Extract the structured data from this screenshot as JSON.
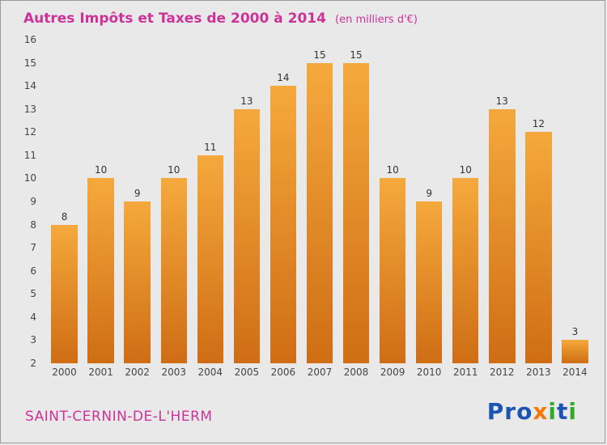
{
  "header": {
    "title": "Autres Impôts et Taxes de 2000 à 2014",
    "subtitle": "(en milliers d'€)"
  },
  "footer": {
    "commune": "SAINT-CERNIN-DE-L'HERM",
    "logo_letters": [
      {
        "ch": "P",
        "color": "#1c54b2"
      },
      {
        "ch": "r",
        "color": "#1c54b2"
      },
      {
        "ch": "o",
        "color": "#1c54b2"
      },
      {
        "ch": "x",
        "color": "#f4790b"
      },
      {
        "ch": "i",
        "color": "#35a829"
      },
      {
        "ch": "t",
        "color": "#1c54b2"
      },
      {
        "ch": "i",
        "color": "#35a829"
      }
    ]
  },
  "colors": {
    "title": "#cc3399",
    "background": "#e9e9e9",
    "axis_text": "#444444",
    "value_label": "#333333"
  },
  "chart_data": {
    "type": "bar",
    "title": "Autres Impôts et Taxes de 2000 à 2014",
    "subtitle": "(en milliers d'€)",
    "categories": [
      "2000",
      "2001",
      "2002",
      "2003",
      "2004",
      "2005",
      "2006",
      "2007",
      "2008",
      "2009",
      "2010",
      "2011",
      "2012",
      "2013",
      "2014"
    ],
    "values": [
      8,
      10,
      9,
      10,
      11,
      13,
      14,
      15,
      15,
      10,
      9,
      10,
      13,
      12,
      3
    ],
    "xlabel": "",
    "ylabel": "",
    "ylim": [
      2,
      16
    ],
    "ytick_step": 1,
    "grid": false,
    "legend": "none",
    "bar_color_top": "#f5a93c",
    "bar_color_bottom": "#cf6d15"
  }
}
